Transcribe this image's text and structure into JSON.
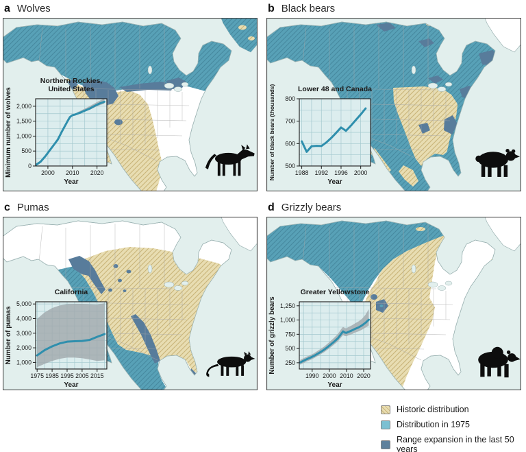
{
  "figure": {
    "panels": [
      {
        "letter": "a",
        "title": "Wolves",
        "animal_icon": "wolf-icon"
      },
      {
        "letter": "b",
        "title": "Black bears",
        "animal_icon": "black-bear-icon"
      },
      {
        "letter": "c",
        "title": "Pumas",
        "animal_icon": "puma-icon"
      },
      {
        "letter": "d",
        "title": "Grizzly bears",
        "animal_icon": "grizzly-bear-icon"
      }
    ],
    "legend": [
      {
        "key": "historic",
        "label": "Historic distribution",
        "color": "#e8ddb2",
        "hatched": true
      },
      {
        "key": "distribution_1975",
        "label": "Distribution in 1975",
        "color": "#7cc0d2",
        "hatched": false
      },
      {
        "key": "range_expansion",
        "label": "Range expansion in the last 50 years",
        "color": "#5f819c",
        "hatched": false
      }
    ],
    "colors": {
      "historic_fill": "#e8ddb2",
      "historic_hatch": "#c9b478",
      "distribution_1975_fill": "#58a1b7",
      "distribution_1975_hatch": "#46899f",
      "legend_1975_fill": "#7cc0d2",
      "range_expansion_fill": "#587c9b",
      "ocean": "#e2efed",
      "land": "#ffffff",
      "coastline": "#9bb2b2",
      "state_border": "#a9a9a9",
      "map_frame": "#454545",
      "chart_line": "#2f8fad",
      "chart_band": "#a0a8ab",
      "chart_bg": "#dcedee",
      "chart_grid": "#a3c8ce",
      "animal_silhouette": "#0d0d0d",
      "text": "#1a1a1a"
    }
  },
  "chart_data": [
    {
      "type": "line",
      "panel": "a",
      "region_label": [
        "Northern Rockies,",
        "United States"
      ],
      "xlabel": "Year",
      "ylabel": "Minimum number of wolves",
      "xlim": [
        1995,
        2024
      ],
      "ylim": [
        0,
        2250
      ],
      "xticks": [
        2000,
        2010,
        2020
      ],
      "yticks": [
        0,
        500,
        1000,
        1500,
        2000
      ],
      "x_grid_step": 5,
      "y_grid_step": 250,
      "grid": true,
      "series": [
        {
          "name": "Minimum number of wolves",
          "x": [
            1995,
            1997,
            1999,
            2000,
            2002,
            2004,
            2006,
            2008,
            2009,
            2010,
            2011,
            2013,
            2015,
            2017,
            2019,
            2021,
            2023
          ],
          "y": [
            30,
            140,
            330,
            440,
            660,
            880,
            1200,
            1500,
            1640,
            1700,
            1720,
            1780,
            1850,
            1920,
            2010,
            2090,
            2150
          ]
        }
      ],
      "band": {
        "x": [
          2012,
          2014,
          2016,
          2018,
          2020,
          2022,
          2023
        ],
        "lower": [
          1730,
          1790,
          1850,
          1920,
          2000,
          2060,
          2080
        ],
        "upper": [
          1800,
          1880,
          1960,
          2050,
          2140,
          2220,
          2260
        ]
      }
    },
    {
      "type": "line",
      "panel": "b",
      "region_label": [
        "Lower 48 and Canada"
      ],
      "xlabel": "Year",
      "ylabel": "Number of black bears (thousands)",
      "xlim": [
        1987.5,
        2002
      ],
      "ylim": [
        500,
        800
      ],
      "xticks": [
        1988,
        1992,
        1996,
        2000
      ],
      "yticks": [
        500,
        600,
        700,
        800
      ],
      "x_grid_step": 2,
      "y_grid_step": 50,
      "grid": true,
      "series": [
        {
          "name": "Number of black bears (thousands)",
          "x": [
            1988,
            1989,
            1990,
            1991,
            1992,
            1993,
            1994,
            1995,
            1996,
            1997,
            1998,
            1999,
            2000,
            2001
          ],
          "y": [
            610,
            563,
            588,
            590,
            589,
            605,
            625,
            648,
            672,
            657,
            680,
            705,
            730,
            757
          ]
        }
      ]
    },
    {
      "type": "line",
      "panel": "c",
      "region_label": [
        "California"
      ],
      "xlabel": "Year",
      "ylabel": "Number of pumas",
      "xlim": [
        1974,
        2021.5
      ],
      "ylim": [
        550,
        5150
      ],
      "xticks": [
        1975,
        1985,
        1995,
        2005,
        2015
      ],
      "yticks": [
        1000,
        2000,
        3000,
        4000,
        5000
      ],
      "x_grid_step": 5,
      "y_grid_step": 500,
      "grid": true,
      "series": [
        {
          "name": "Number of pumas",
          "x": [
            1975,
            1980,
            1985,
            1990,
            1995,
            2000,
            2005,
            2010,
            2015,
            2020
          ],
          "y": [
            1480,
            1840,
            2100,
            2300,
            2420,
            2450,
            2470,
            2540,
            2750,
            2940
          ]
        }
      ],
      "band": {
        "x": [
          1975,
          1980,
          1985,
          1990,
          1995,
          2000,
          2005,
          2010,
          2015,
          2020
        ],
        "lower": [
          680,
          900,
          1100,
          1250,
          1330,
          1330,
          1290,
          1200,
          1100,
          1150
        ],
        "upper": [
          3980,
          4420,
          4720,
          4900,
          4990,
          5010,
          5010,
          4980,
          4960,
          5050
        ]
      }
    },
    {
      "type": "line",
      "panel": "d",
      "region_label": [
        "Greater Yellowstone"
      ],
      "xlabel": "Year",
      "ylabel": "Number of grizzly bears",
      "xlim": [
        1982.5,
        2024
      ],
      "ylim": [
        140,
        1320
      ],
      "xticks": [
        1990,
        2000,
        2010,
        2020
      ],
      "yticks": [
        250,
        500,
        750,
        1000,
        1250
      ],
      "x_grid_step": 5,
      "y_grid_step": 125,
      "grid": true,
      "series": [
        {
          "name": "Number of grizzly bears",
          "x": [
            1983,
            1985,
            1987,
            1989,
            1991,
            1993,
            1995,
            1997,
            1999,
            2001,
            2003,
            2005,
            2007,
            2008,
            2009,
            2010,
            2011,
            2013,
            2015,
            2017,
            2019,
            2021,
            2023
          ],
          "y": [
            255,
            285,
            315,
            340,
            370,
            405,
            440,
            480,
            525,
            575,
            625,
            680,
            760,
            800,
            780,
            775,
            790,
            815,
            845,
            870,
            905,
            950,
            1005
          ]
        }
      ],
      "band": {
        "x": [
          1983,
          1985,
          1987,
          1989,
          1991,
          1993,
          1995,
          1997,
          1999,
          2001,
          2003,
          2005,
          2007,
          2008,
          2009,
          2010,
          2011,
          2013,
          2015,
          2017,
          2019,
          2021,
          2023
        ],
        "lower": [
          215,
          245,
          275,
          300,
          330,
          365,
          400,
          435,
          480,
          525,
          575,
          625,
          700,
          735,
          720,
          715,
          730,
          750,
          780,
          800,
          830,
          865,
          905
        ],
        "upper": [
          300,
          330,
          360,
          385,
          415,
          455,
          495,
          535,
          585,
          640,
          695,
          755,
          845,
          880,
          860,
          855,
          875,
          905,
          940,
          975,
          1020,
          1090,
          1190
        ]
      }
    }
  ]
}
